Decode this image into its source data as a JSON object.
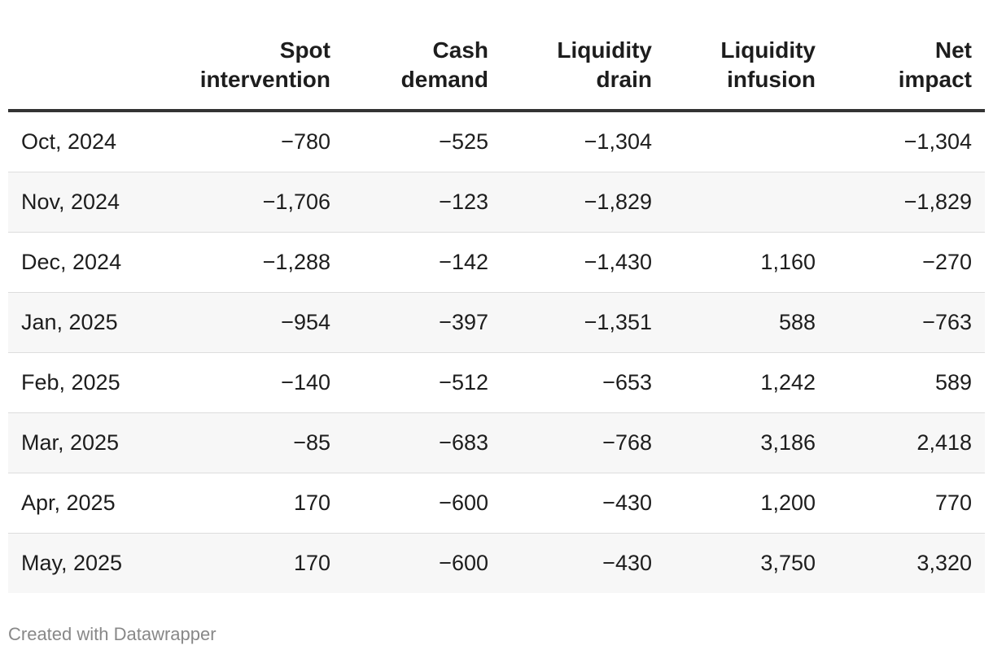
{
  "chart_data": {
    "type": "table",
    "columns": [
      "",
      "Spot intervention",
      "Cash demand",
      "Liquidity drain",
      "Liquidity infusion",
      "Net impact"
    ],
    "column_header_lines": [
      [
        "",
        ""
      ],
      [
        "Spot",
        "intervention"
      ],
      [
        "Cash",
        "demand"
      ],
      [
        "Liquidity",
        "drain"
      ],
      [
        "Liquidity",
        "infusion"
      ],
      [
        "Net",
        "impact"
      ]
    ],
    "rows": [
      {
        "label": "Oct, 2024",
        "values": [
          "−780",
          "−525",
          "−1,304",
          "",
          "−1,304"
        ]
      },
      {
        "label": "Nov, 2024",
        "values": [
          "−1,706",
          "−123",
          "−1,829",
          "",
          "−1,829"
        ]
      },
      {
        "label": "Dec, 2024",
        "values": [
          "−1,288",
          "−142",
          "−1,430",
          "1,160",
          "−270"
        ]
      },
      {
        "label": "Jan, 2025",
        "values": [
          "−954",
          "−397",
          "−1,351",
          "588",
          "−763"
        ]
      },
      {
        "label": "Feb, 2025",
        "values": [
          "−140",
          "−512",
          "−653",
          "1,242",
          "589"
        ]
      },
      {
        "label": "Mar, 2025",
        "values": [
          "−85",
          "−683",
          "−768",
          "3,186",
          "2,418"
        ]
      },
      {
        "label": "Apr, 2025",
        "values": [
          "170",
          "−600",
          "−430",
          "1,200",
          "770"
        ]
      },
      {
        "label": "May, 2025",
        "values": [
          "170",
          "−600",
          "−430",
          "3,750",
          "3,320"
        ]
      }
    ]
  },
  "footer": {
    "credit": "Created with Datawrapper"
  },
  "colors": {
    "text": "#1d1d1d",
    "header_rule": "#333333",
    "row_divider": "#dddddd",
    "stripe": "#f7f7f7",
    "credit": "#888888"
  }
}
